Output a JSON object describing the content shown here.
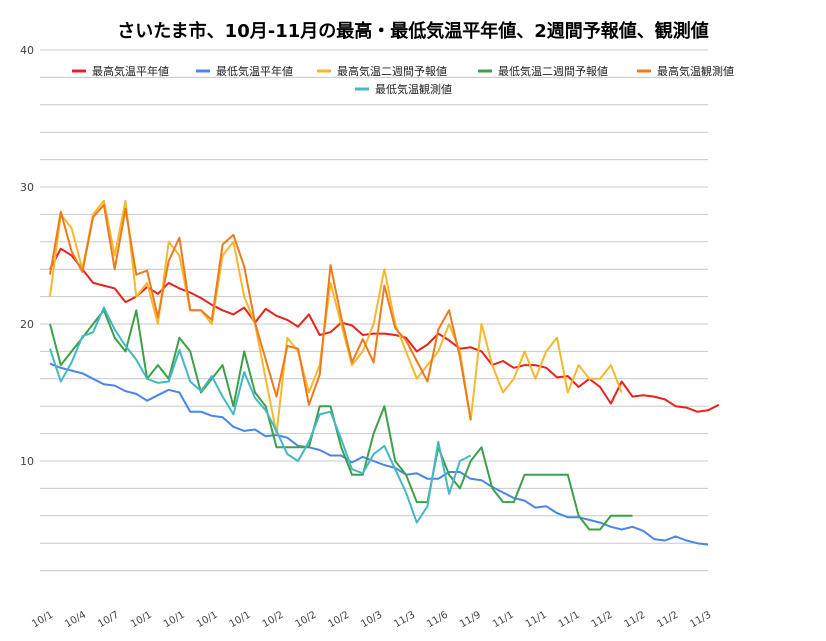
{
  "chart_data": {
    "type": "line",
    "title": "さいたま市、10月-11月の最高・最低気温平年値、2週間予報値、観測値",
    "xlabel": "",
    "ylabel": "",
    "ylim": [
      0,
      40
    ],
    "y_ticks": [
      "10",
      "20",
      "30",
      "40"
    ],
    "x_tick_labels": [
      "10/1",
      "10/4",
      "10/7",
      "10/1",
      "10/1",
      "10/1",
      "10/1",
      "10/2",
      "10/2",
      "10/2",
      "10/3",
      "11/3",
      "11/6",
      "11/9",
      "11/1",
      "11/1",
      "11/1",
      "11/2",
      "11/2",
      "11/2",
      "11/3"
    ],
    "legend": [
      {
        "name": "最高気温平年値",
        "color": "#e8231c"
      },
      {
        "name": "最低気温平年値",
        "color": "#4a86e8"
      },
      {
        "name": "最高気温二週間予報値",
        "color": "#f5b82e"
      },
      {
        "name": "最低気温二週間予報値",
        "color": "#3ca04b"
      },
      {
        "name": "最高気温観測値",
        "color": "#ef7a1a"
      },
      {
        "name": "最低気温観測値",
        "color": "#45b8c4"
      }
    ],
    "series": [
      {
        "name": "最高気温平年値",
        "color": "#e8231c",
        "values": [
          24,
          25.5,
          25,
          24,
          23,
          22.8,
          22.6,
          21.6,
          22,
          22.7,
          22.2,
          23,
          22.6,
          22.3,
          21.9,
          21.4,
          21,
          20.7,
          21.2,
          20.1,
          21.1,
          20.6,
          20.3,
          19.8,
          20.7,
          19.2,
          19.4,
          20.1,
          19.9,
          19.2,
          19.3,
          19.3,
          19.2,
          19,
          18,
          18.5,
          19.3,
          18.8,
          18.2,
          18.3,
          18,
          17,
          17.3,
          16.8,
          17,
          17,
          16.8,
          16.1,
          16.2,
          15.4,
          16,
          15.4,
          14.2,
          15.8,
          14.7,
          14.8,
          14.7,
          14.5,
          14,
          13.9,
          13.6,
          13.7,
          14.1
        ]
      },
      {
        "name": "最低気温平年値",
        "color": "#4a86e8",
        "values": [
          17.1,
          16.8,
          16.6,
          16.4,
          16,
          15.6,
          15.5,
          15.1,
          14.9,
          14.4,
          14.8,
          15.2,
          15,
          13.6,
          13.6,
          13.3,
          13.2,
          12.5,
          12.2,
          12.3,
          11.8,
          11.9,
          11.7,
          11.1,
          11,
          10.8,
          10.4,
          10.4,
          9.9,
          10.3,
          10,
          9.7,
          9.5,
          9,
          9.1,
          8.7,
          8.7,
          9.2,
          9.2,
          8.7,
          8.6,
          8.1,
          7.7,
          7.3,
          7.1,
          6.6,
          6.7,
          6.2,
          5.9,
          5.9,
          5.7,
          5.5,
          5.2,
          5,
          5.2,
          4.9,
          4.3,
          4.2,
          4.5,
          4.2,
          4,
          3.9
        ]
      },
      {
        "name": "最高気温二週間予報値",
        "color": "#f5b82e",
        "values": [
          22,
          28,
          27,
          24,
          28,
          29,
          25,
          29,
          22,
          23,
          20,
          26,
          25,
          21,
          21,
          20,
          25,
          26,
          22,
          20,
          16,
          12,
          19,
          18,
          15,
          17,
          23,
          20,
          17,
          18,
          20,
          24,
          20,
          18,
          16,
          17,
          18,
          20,
          18,
          13,
          20,
          17,
          15,
          16,
          18,
          16,
          18,
          19,
          15,
          17,
          16,
          16,
          17,
          15
        ]
      },
      {
        "name": "最低気温二週間予報値",
        "color": "#3ca04b",
        "values": [
          20,
          17,
          18,
          19,
          20,
          21,
          19,
          18,
          21,
          16,
          17,
          16,
          19,
          18,
          15,
          16,
          17,
          14,
          18,
          15,
          14,
          11,
          11,
          11,
          11,
          14,
          14,
          11,
          9,
          9,
          12,
          14,
          10,
          9,
          7,
          7,
          11,
          9,
          8,
          10,
          11,
          8,
          7,
          7,
          9,
          9,
          9,
          9,
          9,
          6,
          5,
          5,
          6,
          6,
          6
        ]
      },
      {
        "name": "最高気温観測値",
        "color": "#ef7a1a",
        "values": [
          23.6,
          28.2,
          25.3,
          23.8,
          27.8,
          28.7,
          24,
          28.4,
          23.6,
          23.9,
          20.5,
          24.6,
          26.3,
          21,
          21,
          20.3,
          25.8,
          26.5,
          24.2,
          20.1,
          17.4,
          14.7,
          18.4,
          18.2,
          14.1,
          16.3,
          24.3,
          20.5,
          17.2,
          18.9,
          17.2,
          22.8,
          19.7,
          18.8,
          17.3,
          15.8,
          19.6,
          21,
          17.6,
          13
        ]
      },
      {
        "name": "最低気温観測値",
        "color": "#45b8c4",
        "values": [
          18.2,
          15.8,
          17.2,
          19.1,
          19.4,
          21.2,
          19.6,
          18.4,
          17.4,
          16,
          15.7,
          15.8,
          18.1,
          15.8,
          15.1,
          16.2,
          14.7,
          13.4,
          16.5,
          14.6,
          13.7,
          12.2,
          10.5,
          10,
          11.4,
          13.4,
          13.6,
          11.6,
          9.4,
          9.1,
          10.5,
          11.1,
          9.4,
          7.7,
          5.5,
          6.7,
          11.4,
          7.6,
          10,
          10.4
        ]
      }
    ]
  }
}
